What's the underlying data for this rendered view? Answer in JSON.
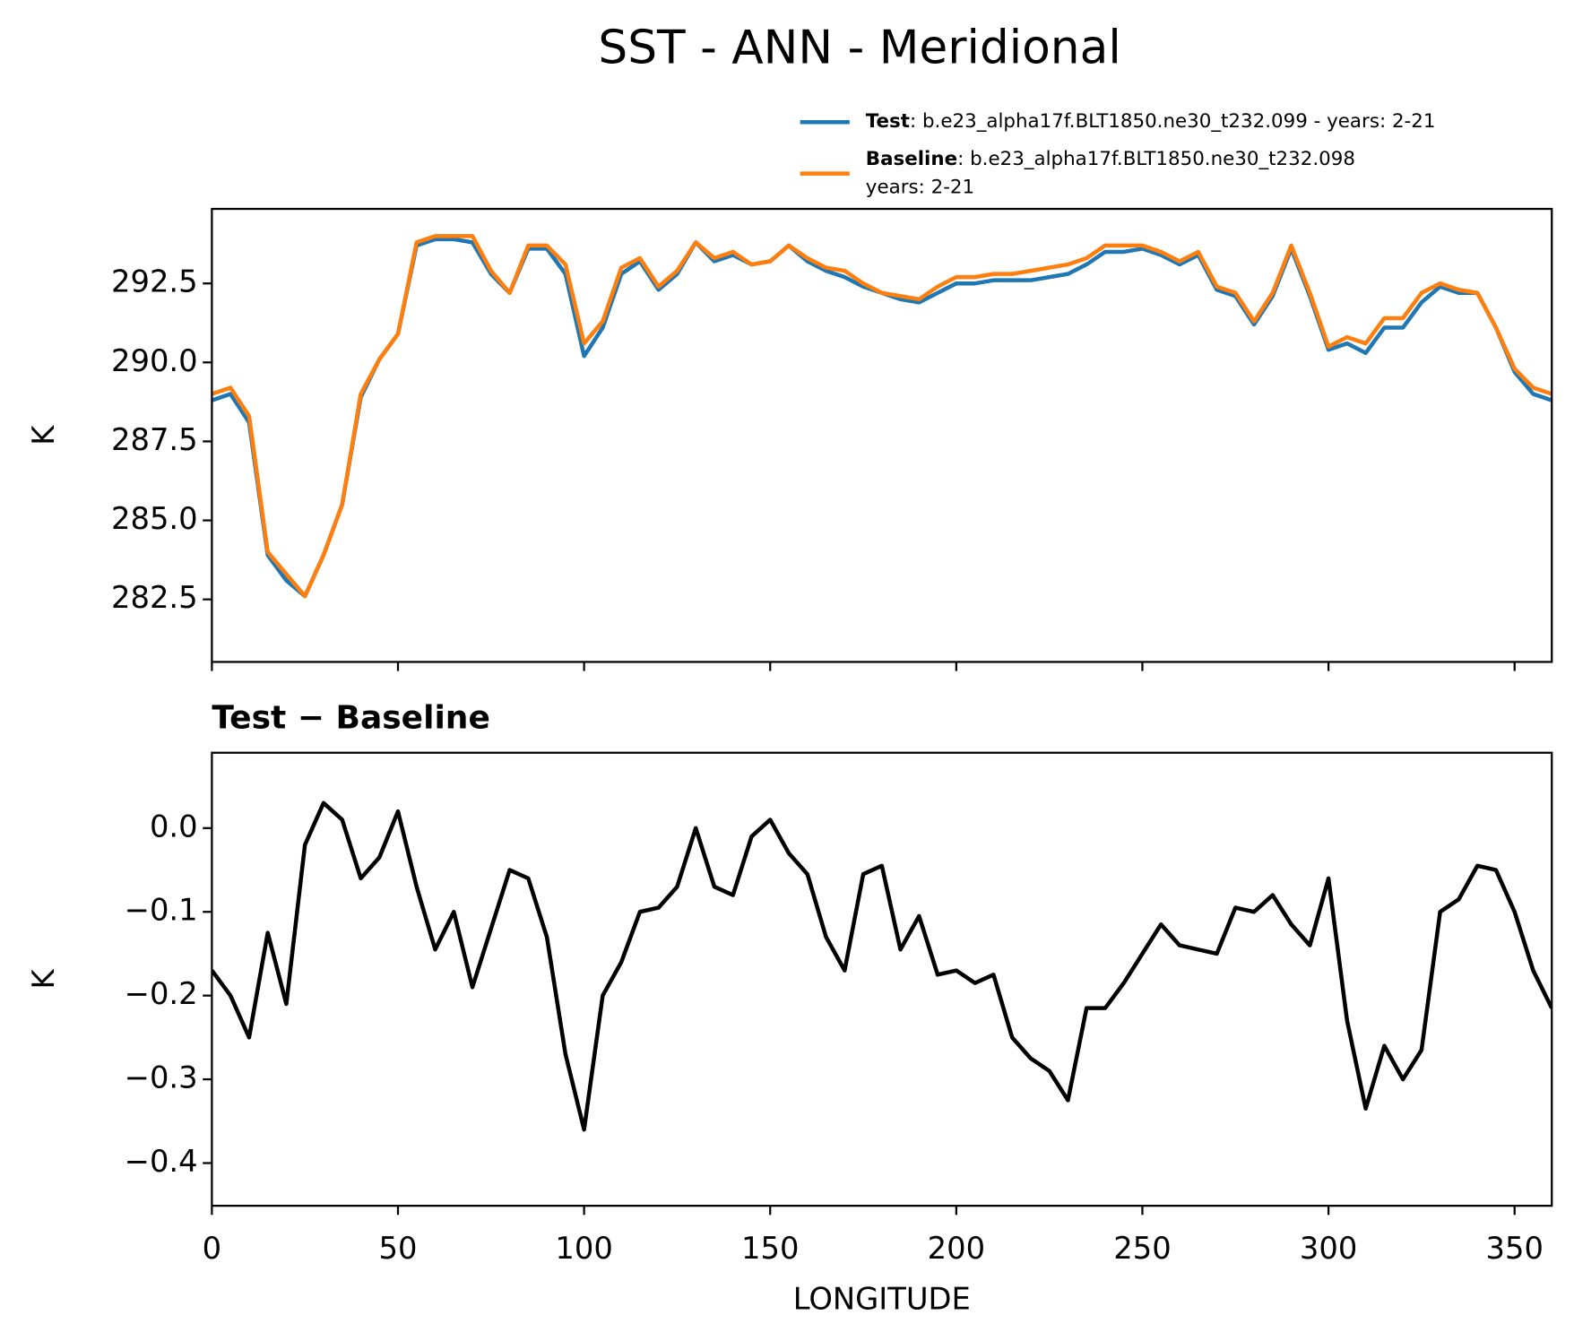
{
  "chart_data": [
    {
      "type": "line",
      "title": "SST - ANN - Meridional",
      "title_loc": "figure",
      "ylabel": "K",
      "legend_text": [
        [
          ": b.e23_alpha17f.BLT1850.ne30_t232.099 - years: 2-21"
        ],
        [
          ": b.e23_alpha17f.BLT1850.ne30_t232.098",
          "years: 2-21"
        ]
      ],
      "x": [
        0,
        5,
        10,
        15,
        20,
        25,
        30,
        35,
        40,
        45,
        50,
        55,
        60,
        65,
        70,
        75,
        80,
        85,
        90,
        95,
        100,
        105,
        110,
        115,
        120,
        125,
        130,
        135,
        140,
        145,
        150,
        155,
        160,
        165,
        170,
        175,
        180,
        185,
        190,
        195,
        200,
        205,
        210,
        215,
        220,
        225,
        230,
        235,
        240,
        245,
        250,
        255,
        260,
        265,
        270,
        275,
        280,
        285,
        290,
        295,
        300,
        305,
        310,
        315,
        320,
        325,
        330,
        335,
        340,
        345,
        350,
        355,
        360
      ],
      "series": [
        {
          "name": "Test",
          "color": "#1f77b4",
          "values": [
            288.8,
            289.0,
            288.1,
            283.9,
            283.1,
            282.6,
            283.9,
            285.5,
            288.9,
            290.1,
            290.9,
            293.7,
            293.9,
            293.9,
            293.8,
            292.8,
            292.2,
            293.6,
            293.6,
            292.8,
            290.2,
            291.1,
            292.8,
            293.2,
            292.3,
            292.8,
            293.8,
            293.2,
            293.4,
            293.1,
            293.2,
            293.7,
            293.2,
            292.9,
            292.7,
            292.4,
            292.2,
            292.0,
            291.9,
            292.2,
            292.5,
            292.5,
            292.6,
            292.6,
            292.6,
            292.7,
            292.8,
            293.1,
            293.5,
            293.5,
            293.6,
            293.4,
            293.1,
            293.4,
            292.3,
            292.1,
            291.2,
            292.1,
            293.6,
            292.1,
            290.4,
            290.6,
            290.3,
            291.1,
            291.1,
            291.9,
            292.4,
            292.2,
            292.2,
            291.1,
            289.7,
            289.0,
            288.8
          ]
        },
        {
          "name": "Baseline",
          "color": "#ff7f0e",
          "values": [
            289.0,
            289.2,
            288.3,
            284.0,
            283.3,
            282.6,
            283.9,
            285.5,
            289.0,
            290.1,
            290.9,
            293.8,
            294.0,
            294.0,
            294.0,
            292.9,
            292.2,
            293.7,
            293.7,
            293.1,
            290.6,
            291.3,
            293.0,
            293.3,
            292.4,
            292.9,
            293.8,
            293.3,
            293.5,
            293.1,
            293.2,
            293.7,
            293.3,
            293.0,
            292.9,
            292.5,
            292.2,
            292.1,
            292.0,
            292.4,
            292.7,
            292.7,
            292.8,
            292.8,
            292.9,
            293.0,
            293.1,
            293.3,
            293.7,
            293.7,
            293.7,
            293.5,
            293.2,
            293.5,
            292.4,
            292.2,
            291.3,
            292.2,
            293.7,
            292.2,
            290.5,
            290.8,
            290.6,
            291.4,
            291.4,
            292.2,
            292.5,
            292.3,
            292.2,
            291.1,
            289.8,
            289.2,
            289.0
          ]
        }
      ],
      "xlim": [
        0,
        360
      ],
      "xticks": [
        0,
        50,
        100,
        150,
        200,
        250,
        300,
        350
      ],
      "show_xtick_labels": false,
      "ylim": [
        280.52,
        294.86
      ],
      "yticks": [
        282.5,
        {
          "value": 285,
          "label": "285.0"
        },
        287.5,
        {
          "value": 290,
          "label": "290.0"
        },
        292.5
      ]
    },
    {
      "type": "line",
      "title": "Test − Baseline",
      "title_loc": "left",
      "ylabel": "K",
      "xlabel": "LONGITUDE",
      "x": [
        0,
        5,
        10,
        15,
        20,
        25,
        30,
        35,
        40,
        45,
        50,
        55,
        60,
        65,
        70,
        75,
        80,
        85,
        90,
        95,
        100,
        105,
        110,
        115,
        120,
        125,
        130,
        135,
        140,
        145,
        150,
        155,
        160,
        165,
        170,
        175,
        180,
        185,
        190,
        195,
        200,
        205,
        210,
        215,
        220,
        225,
        230,
        235,
        240,
        245,
        250,
        255,
        260,
        265,
        270,
        275,
        280,
        285,
        290,
        295,
        300,
        305,
        310,
        315,
        320,
        325,
        330,
        335,
        340,
        345,
        350,
        355,
        360
      ],
      "series": [
        {
          "color": "#000000",
          "values": [
            -0.17,
            -0.2,
            -0.25,
            -0.125,
            -0.21,
            -0.02,
            0.03,
            0.01,
            -0.06,
            -0.035,
            0.02,
            -0.07,
            -0.145,
            -0.1,
            -0.19,
            -0.12,
            -0.05,
            -0.06,
            -0.13,
            -0.27,
            -0.36,
            -0.2,
            -0.16,
            -0.1,
            -0.095,
            -0.07,
            0.0,
            -0.07,
            -0.08,
            -0.01,
            0.01,
            -0.03,
            -0.055,
            -0.13,
            -0.17,
            -0.055,
            -0.045,
            -0.145,
            -0.105,
            -0.175,
            -0.17,
            -0.185,
            -0.175,
            -0.25,
            -0.275,
            -0.29,
            -0.325,
            -0.215,
            -0.215,
            -0.185,
            -0.15,
            -0.115,
            -0.14,
            -0.145,
            -0.15,
            -0.095,
            -0.1,
            -0.08,
            -0.115,
            -0.14,
            -0.06,
            -0.23,
            -0.335,
            -0.26,
            -0.3,
            -0.265,
            -0.1,
            -0.085,
            -0.045,
            -0.05,
            -0.1,
            -0.17,
            -0.215
          ]
        }
      ],
      "xlim": [
        0,
        360
      ],
      "xticks": [
        0,
        50,
        100,
        150,
        200,
        250,
        300,
        350
      ],
      "show_xtick_labels": true,
      "ylim": [
        -0.451,
        0.09
      ],
      "yticks": [
        {
          "value": -0.4,
          "label": "−0.4"
        },
        {
          "value": -0.3,
          "label": "−0.3"
        },
        {
          "value": -0.2,
          "label": "−0.2"
        },
        {
          "value": -0.1,
          "label": "−0.1"
        },
        {
          "value": 0,
          "label": "0.0"
        }
      ]
    }
  ]
}
